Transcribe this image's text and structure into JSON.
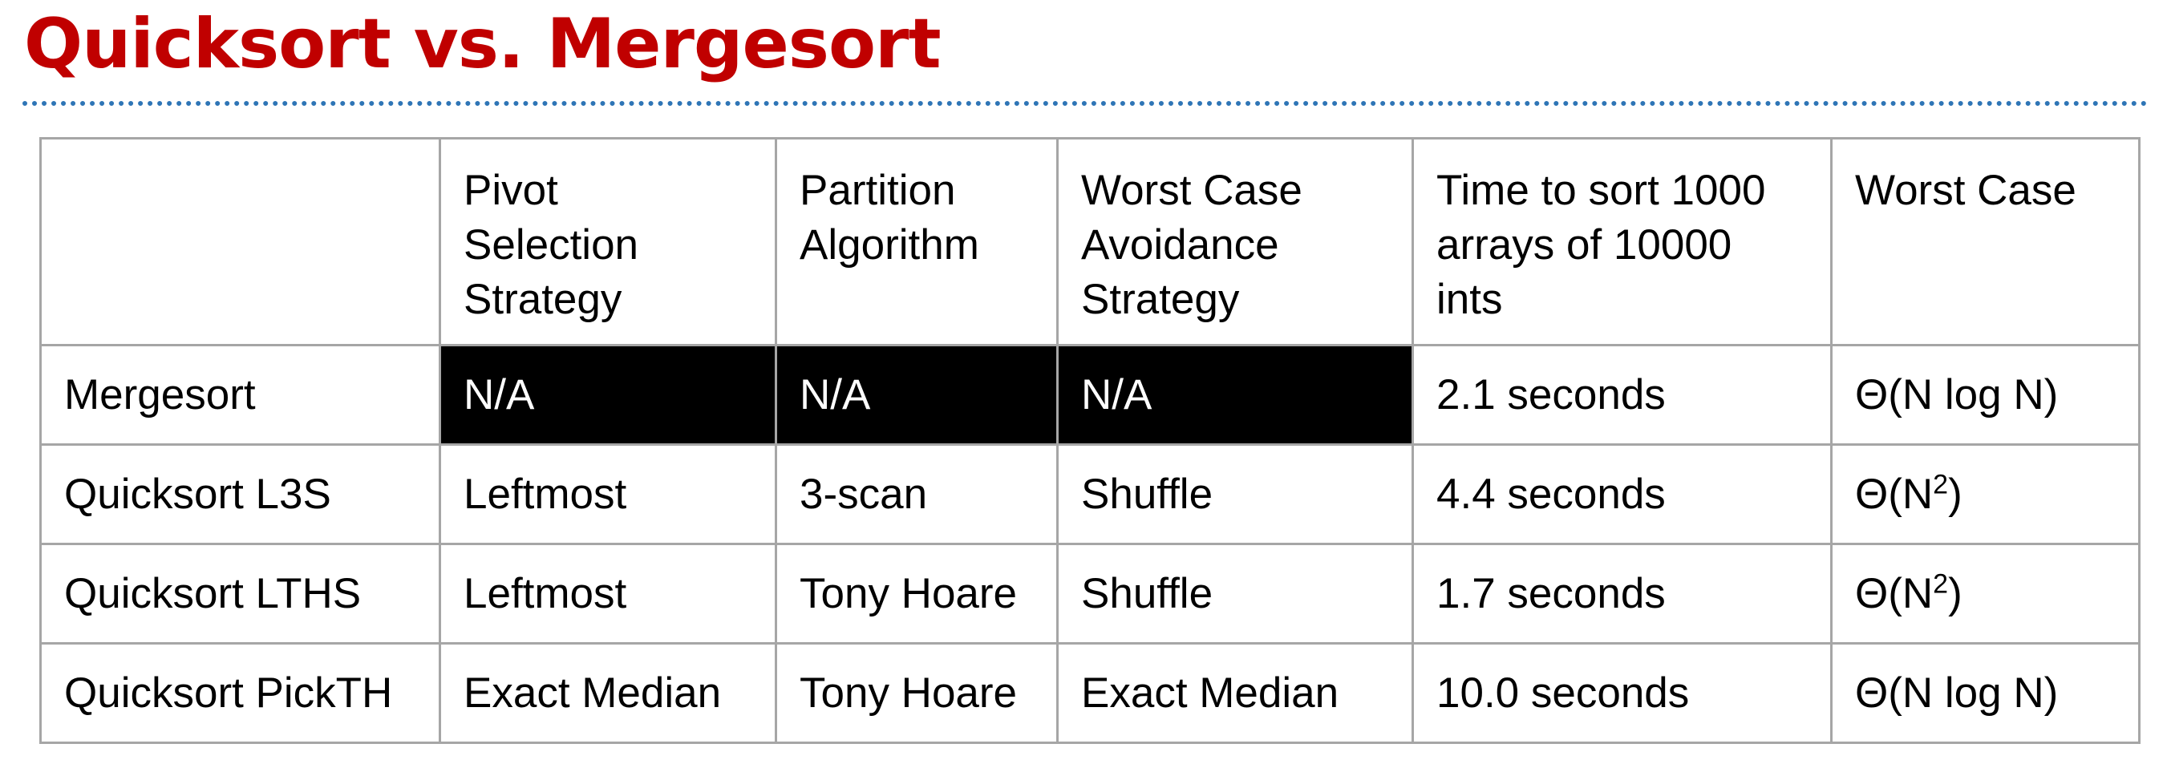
{
  "title": "Quicksort vs. Mergesort",
  "table": {
    "headers": [
      "",
      "Pivot Selection Strategy",
      "Partition Algorithm",
      "Worst Case Avoidance Strategy",
      "Time to sort 1000 arrays of 10000 ints",
      "Worst Case"
    ],
    "header_lines": [
      [],
      [
        "Pivot",
        "Selection",
        "Strategy"
      ],
      [
        "Partition",
        "Algorithm"
      ],
      [
        "Worst Case",
        "Avoidance",
        "Strategy"
      ],
      [
        "Time to sort 1000",
        "arrays of 10000",
        "ints"
      ],
      [
        "Worst Case"
      ]
    ],
    "rows": [
      {
        "name": "Mergesort",
        "pivot": "N/A",
        "partition": "N/A",
        "avoidance": "N/A",
        "time": "2.1 seconds",
        "worst_case": "Θ(N log N)",
        "worst_case_base": "Θ(N log N",
        "worst_case_exp": "",
        "worst_case_close": ")",
        "na_highlight": true
      },
      {
        "name": "Quicksort L3S",
        "pivot": "Leftmost",
        "partition": "3-scan",
        "avoidance": "Shuffle",
        "time": "4.4 seconds",
        "worst_case": "Θ(N2)",
        "worst_case_base": "Θ(N",
        "worst_case_exp": "2",
        "worst_case_close": ")",
        "na_highlight": false
      },
      {
        "name": "Quicksort LTHS",
        "pivot": "Leftmost",
        "partition": "Tony Hoare",
        "avoidance": "Shuffle",
        "time": "1.7 seconds",
        "worst_case": "Θ(N2)",
        "worst_case_base": "Θ(N",
        "worst_case_exp": "2",
        "worst_case_close": ")",
        "na_highlight": false
      },
      {
        "name": "Quicksort PickTH",
        "pivot": "Exact Median",
        "partition": "Tony Hoare",
        "avoidance": "Exact Median",
        "time": "10.0 seconds",
        "worst_case": "Θ(N log N)",
        "worst_case_base": "Θ(N log N",
        "worst_case_exp": "",
        "worst_case_close": ")",
        "na_highlight": false
      }
    ]
  },
  "colors": {
    "title": "#c00000",
    "rule": "#2e75b6",
    "grid": "#a6a6a6",
    "na_fill": "#000000",
    "na_text": "#ffffff"
  }
}
